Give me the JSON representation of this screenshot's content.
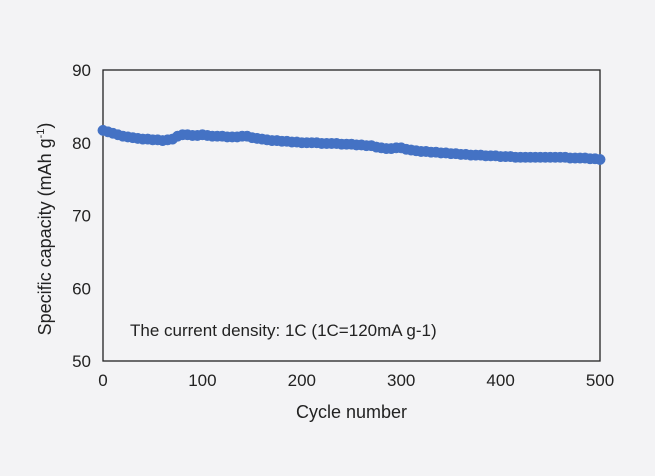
{
  "chart_data": {
    "type": "scatter",
    "title": "",
    "xlabel": "Cycle number",
    "ylabel_main": "Specific capacity (mAh g",
    "ylabel_sup": "-1",
    "ylabel_close": ")",
    "xlim": [
      0,
      500
    ],
    "ylim": [
      50,
      90
    ],
    "xticks": [
      0,
      100,
      200,
      300,
      400,
      500
    ],
    "yticks": [
      50,
      60,
      70,
      80,
      90
    ],
    "grid": false,
    "annotation": "The current density: 1C (1C=120mA g-1)",
    "marker_color": "#4472c4",
    "series": [
      {
        "x": [
          0,
          5,
          10,
          15,
          20,
          25,
          30,
          35,
          40,
          45,
          50,
          55,
          60,
          65,
          70,
          75,
          80,
          85,
          90,
          95,
          100,
          105,
          110,
          115,
          120,
          125,
          130,
          135,
          140,
          145,
          150,
          155,
          160,
          165,
          170,
          175,
          180,
          185,
          190,
          195,
          200,
          205,
          210,
          215,
          220,
          225,
          230,
          235,
          240,
          245,
          250,
          255,
          260,
          265,
          270,
          275,
          280,
          285,
          290,
          295,
          300,
          305,
          310,
          315,
          320,
          325,
          330,
          335,
          340,
          345,
          350,
          355,
          360,
          365,
          370,
          375,
          380,
          385,
          390,
          395,
          400,
          405,
          410,
          415,
          420,
          425,
          430,
          435,
          440,
          445,
          450,
          455,
          460,
          465,
          470,
          475,
          480,
          485,
          490,
          495,
          500
        ],
        "values": [
          81.7,
          81.5,
          81.3,
          81.1,
          80.9,
          80.8,
          80.7,
          80.6,
          80.5,
          80.5,
          80.4,
          80.4,
          80.3,
          80.4,
          80.5,
          80.9,
          81.1,
          81.1,
          81.0,
          81.0,
          81.1,
          81.0,
          80.9,
          80.9,
          80.9,
          80.8,
          80.8,
          80.8,
          80.9,
          80.9,
          80.7,
          80.6,
          80.5,
          80.4,
          80.3,
          80.3,
          80.2,
          80.2,
          80.1,
          80.1,
          80.0,
          80.0,
          80.0,
          80.0,
          79.9,
          79.9,
          79.9,
          79.9,
          79.8,
          79.8,
          79.8,
          79.7,
          79.7,
          79.6,
          79.6,
          79.4,
          79.3,
          79.2,
          79.2,
          79.3,
          79.3,
          79.1,
          79.0,
          78.9,
          78.8,
          78.8,
          78.7,
          78.7,
          78.6,
          78.6,
          78.5,
          78.5,
          78.4,
          78.4,
          78.3,
          78.3,
          78.3,
          78.2,
          78.2,
          78.2,
          78.1,
          78.1,
          78.1,
          78.0,
          78.0,
          78.0,
          78.0,
          78.0,
          78.0,
          78.0,
          78.0,
          78.0,
          78.0,
          78.0,
          77.9,
          77.9,
          77.9,
          77.9,
          77.8,
          77.8,
          77.7
        ]
      }
    ]
  }
}
